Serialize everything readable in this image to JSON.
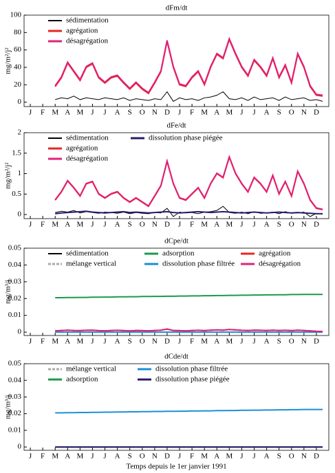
{
  "chart_data": [
    {
      "type": "line",
      "title": "dFm/dt",
      "ylabel": "mg/m²/j²",
      "categories": [
        "J",
        null,
        "F",
        null,
        "M",
        null,
        "A",
        null,
        "M",
        null,
        "J",
        null,
        "J",
        null,
        "A",
        null,
        "S",
        null,
        "O",
        null,
        "N",
        null,
        "D",
        null,
        "J",
        null,
        "F",
        null,
        "M",
        null,
        "A",
        null,
        "M",
        null,
        "J",
        null,
        "J",
        null,
        "A",
        null,
        "S",
        null,
        "O",
        null,
        "N",
        null,
        "D",
        null
      ],
      "ylim": [
        -5,
        100
      ],
      "yticks": [
        0,
        20,
        40,
        60,
        80,
        100
      ],
      "series": [
        {
          "name": "sédimentation",
          "color": "#000000",
          "values": [
            null,
            null,
            null,
            null,
            3,
            5,
            4,
            7,
            3,
            5,
            4,
            3,
            5,
            4,
            3,
            5,
            2,
            4,
            3,
            2,
            4,
            3,
            12,
            1,
            5,
            3,
            4,
            2,
            5,
            6,
            8,
            12,
            4,
            3,
            5,
            2,
            6,
            3,
            4,
            5,
            2,
            6,
            3,
            4,
            5,
            2,
            3,
            1
          ]
        },
        {
          "name": "agrégation",
          "color": "#e8251f",
          "values": [
            null,
            null,
            null,
            null,
            18,
            28,
            45,
            35,
            25,
            40,
            44,
            28,
            22,
            28,
            30,
            22,
            15,
            22,
            15,
            10,
            22,
            35,
            70,
            40,
            20,
            18,
            28,
            35,
            20,
            40,
            55,
            50,
            72,
            55,
            40,
            30,
            48,
            40,
            30,
            50,
            28,
            42,
            22,
            55,
            40,
            18,
            8,
            7
          ]
        },
        {
          "name": "désagrégation",
          "color": "#e0207a",
          "values": [
            null,
            null,
            null,
            null,
            19,
            29,
            46,
            36,
            26,
            41,
            45,
            29,
            23,
            29,
            31,
            23,
            16,
            23,
            16,
            11,
            23,
            36,
            71,
            41,
            21,
            19,
            29,
            36,
            21,
            41,
            56,
            51,
            73,
            56,
            41,
            31,
            49,
            41,
            31,
            51,
            29,
            43,
            23,
            56,
            41,
            19,
            9,
            8
          ]
        }
      ]
    },
    {
      "type": "line",
      "title": "dFe/dt",
      "ylabel": "mg/m²/j²",
      "categories": [
        "J",
        null,
        "F",
        null,
        "M",
        null,
        "A",
        null,
        "M",
        null,
        "J",
        null,
        "J",
        null,
        "A",
        null,
        "S",
        null,
        "O",
        null,
        "N",
        null,
        "D",
        null,
        "J",
        null,
        "F",
        null,
        "M",
        null,
        "A",
        null,
        "M",
        null,
        "J",
        null,
        "J",
        null,
        "A",
        null,
        "S",
        null,
        "O",
        null,
        "N",
        null,
        "D",
        null
      ],
      "ylim": [
        -0.1,
        2
      ],
      "yticks": [
        0,
        0.5,
        1,
        1.5,
        2
      ],
      "series": [
        {
          "name": "sédimentation",
          "color": "#000000",
          "values": [
            null,
            null,
            null,
            null,
            0.05,
            0.08,
            0.06,
            0.1,
            0.04,
            0.07,
            0.05,
            0.03,
            0.06,
            0.05,
            0.03,
            0.06,
            0.02,
            0.05,
            0.03,
            0.02,
            0.05,
            0.04,
            0.15,
            -0.05,
            0.06,
            0.04,
            0.05,
            0.02,
            0.06,
            0.07,
            0.1,
            0.2,
            0.05,
            0.03,
            0.06,
            0.02,
            0.07,
            0.03,
            0.04,
            0.06,
            0.02,
            0.07,
            0.03,
            0.04,
            0.06,
            -0.05,
            0.03,
            0.01
          ]
        },
        {
          "name": "agrégation",
          "color": "#e8251f",
          "values": [
            null,
            null,
            null,
            null,
            0.35,
            0.55,
            0.82,
            0.65,
            0.45,
            0.75,
            0.8,
            0.5,
            0.4,
            0.5,
            0.55,
            0.4,
            0.3,
            0.4,
            0.3,
            0.2,
            0.45,
            0.7,
            1.3,
            0.75,
            0.4,
            0.35,
            0.5,
            0.65,
            0.4,
            0.75,
            1.0,
            0.9,
            1.4,
            1.0,
            0.75,
            0.55,
            0.9,
            0.75,
            0.55,
            0.95,
            0.5,
            0.8,
            0.45,
            1.05,
            0.75,
            0.35,
            0.15,
            0.12
          ]
        },
        {
          "name": "désagrégation",
          "color": "#e0207a",
          "values": [
            null,
            null,
            null,
            null,
            0.36,
            0.56,
            0.83,
            0.66,
            0.46,
            0.76,
            0.81,
            0.51,
            0.41,
            0.51,
            0.56,
            0.41,
            0.31,
            0.41,
            0.31,
            0.21,
            0.46,
            0.71,
            1.31,
            0.76,
            0.41,
            0.36,
            0.51,
            0.66,
            0.41,
            0.76,
            1.01,
            0.91,
            1.41,
            1.01,
            0.76,
            0.56,
            0.91,
            0.76,
            0.56,
            0.96,
            0.51,
            0.81,
            0.46,
            1.06,
            0.76,
            0.36,
            0.16,
            0.13
          ]
        },
        {
          "name": "dissolution phase piégée",
          "color": "#2a1a6e",
          "values": [
            null,
            null,
            null,
            null,
            0.02,
            0.04,
            0.05,
            0.06,
            0.07,
            0.08,
            0.06,
            0.05,
            0.04,
            0.05,
            0.06,
            0.07,
            0.05,
            0.06,
            0.05,
            0.04,
            0.05,
            0.06,
            0.07,
            0.05,
            0.04,
            0.05,
            0.06,
            0.07,
            0.06,
            0.05,
            0.06,
            0.07,
            0.06,
            0.05,
            0.04,
            0.05,
            0.06,
            0.05,
            0.04,
            0.05,
            0.06,
            0.05,
            0.04,
            0.05,
            0.04,
            0.03,
            0.02,
            0.02
          ]
        }
      ]
    },
    {
      "type": "line",
      "title": "dCpe/dt",
      "ylabel": "mg/m³/j",
      "categories": [
        "J",
        null,
        "F",
        null,
        "M",
        null,
        "A",
        null,
        "M",
        null,
        "J",
        null,
        "J",
        null,
        "A",
        null,
        "S",
        null,
        "O",
        null,
        "N",
        null,
        "D",
        null,
        "J",
        null,
        "F",
        null,
        "M",
        null,
        "A",
        null,
        "M",
        null,
        "J",
        null,
        "J",
        null,
        "A",
        null,
        "S",
        null,
        "O",
        null,
        "N",
        null,
        "D",
        null
      ],
      "ylim": [
        -0.002,
        0.05
      ],
      "yticks": [
        0,
        0.01,
        0.02,
        0.03,
        0.04,
        0.05
      ],
      "series": [
        {
          "name": "sédimentation",
          "color": "#000000",
          "values": [
            null,
            null,
            null,
            null,
            0,
            0,
            0,
            0,
            0,
            0,
            0,
            0,
            0,
            0,
            0,
            0,
            0,
            0,
            0,
            0,
            0,
            0,
            0,
            0,
            0,
            0,
            0,
            0,
            0,
            0,
            0,
            0,
            0,
            0,
            0,
            0,
            0,
            0,
            0,
            0,
            0,
            0,
            0,
            0,
            0,
            0,
            0,
            0
          ]
        },
        {
          "name": "mélange vertical",
          "color": "#aaaaaa",
          "dash": true,
          "values": [
            null,
            null,
            null,
            null,
            0,
            0,
            0,
            0,
            0,
            0,
            0,
            0,
            0,
            0,
            0,
            0,
            0,
            0,
            0,
            0,
            0,
            0,
            0,
            0,
            0,
            0,
            0,
            0,
            0,
            0,
            0,
            0,
            0,
            0,
            0,
            0,
            0,
            0,
            0,
            0,
            0,
            0,
            0,
            0,
            0,
            0,
            0,
            0
          ]
        },
        {
          "name": "adsorption",
          "color": "#1a9a4a",
          "values": [
            null,
            null,
            null,
            null,
            0.0205,
            0.0205,
            0.0206,
            0.0206,
            0.0207,
            0.0207,
            0.0208,
            0.0208,
            0.0209,
            0.0209,
            0.021,
            0.021,
            0.0211,
            0.0211,
            0.0212,
            0.0212,
            0.0213,
            0.0213,
            0.0214,
            0.0214,
            0.0215,
            0.0215,
            0.0216,
            0.0216,
            0.0217,
            0.0217,
            0.0218,
            0.0218,
            0.0219,
            0.0219,
            0.022,
            0.022,
            0.0221,
            0.0221,
            0.0222,
            0.0222,
            0.0223,
            0.0223,
            0.0224,
            0.0224,
            0.0225,
            0.0225,
            0.0225,
            0.0225
          ]
        },
        {
          "name": "dissolution phase filtrée",
          "color": "#1b8fd6",
          "values": [
            null,
            null,
            null,
            null,
            0,
            0,
            0,
            0,
            0,
            0,
            0,
            0,
            0,
            0,
            0,
            0,
            0,
            0,
            0,
            0,
            0,
            0,
            0,
            0,
            0,
            0,
            0,
            0,
            0,
            0,
            0,
            0,
            0,
            0,
            0,
            0,
            0,
            0,
            0,
            0,
            0,
            0,
            0,
            0,
            0,
            0,
            0,
            0
          ]
        },
        {
          "name": "agrégation",
          "color": "#e8251f",
          "values": [
            null,
            null,
            null,
            null,
            0.0008,
            0.001,
            0.0012,
            0.001,
            0.0009,
            0.0011,
            0.0012,
            0.0009,
            0.0008,
            0.001,
            0.0011,
            0.0009,
            0.0008,
            0.001,
            0.0009,
            0.0008,
            0.001,
            0.0012,
            0.0018,
            0.001,
            0.0009,
            0.0008,
            0.001,
            0.0011,
            0.0009,
            0.0012,
            0.0013,
            0.0012,
            0.0016,
            0.0013,
            0.0011,
            0.001,
            0.0012,
            0.0011,
            0.001,
            0.0012,
            0.001,
            0.0011,
            0.0009,
            0.0012,
            0.001,
            0.0008,
            0.0005,
            0.0004
          ]
        },
        {
          "name": "désagrégation",
          "color": "#e0207a",
          "values": [
            null,
            null,
            null,
            null,
            0.0008,
            0.001,
            0.0012,
            0.001,
            0.0009,
            0.0011,
            0.0012,
            0.0009,
            0.0008,
            0.001,
            0.0011,
            0.0009,
            0.0008,
            0.001,
            0.0009,
            0.0008,
            0.001,
            0.0012,
            0.0018,
            0.001,
            0.0009,
            0.0008,
            0.001,
            0.0011,
            0.0009,
            0.0012,
            0.0013,
            0.0012,
            0.0016,
            0.0013,
            0.0011,
            0.001,
            0.0012,
            0.0011,
            0.001,
            0.0012,
            0.001,
            0.0011,
            0.0009,
            0.0012,
            0.001,
            0.0008,
            0.0005,
            0.0004
          ]
        }
      ]
    },
    {
      "type": "line",
      "title": "dCde/dt",
      "ylabel": "mg/m³/j",
      "xlabel": "Temps depuis le 1er janvier 1991",
      "categories": [
        "J",
        null,
        "F",
        null,
        "M",
        null,
        "A",
        null,
        "M",
        null,
        "J",
        null,
        "J",
        null,
        "A",
        null,
        "S",
        null,
        "O",
        null,
        "N",
        null,
        "D",
        null,
        "J",
        null,
        "F",
        null,
        "M",
        null,
        "A",
        null,
        "M",
        null,
        "J",
        null,
        "J",
        null,
        "A",
        null,
        "S",
        null,
        "O",
        null,
        "N",
        null,
        "D",
        null
      ],
      "ylim": [
        -0.002,
        0.05
      ],
      "yticks": [
        0,
        0.01,
        0.02,
        0.03,
        0.04,
        0.05
      ],
      "series": [
        {
          "name": "mélange vertical",
          "color": "#aaaaaa",
          "dash": true,
          "values": [
            null,
            null,
            null,
            null,
            0,
            0,
            0,
            0,
            0,
            0,
            0,
            0,
            0,
            0,
            0,
            0,
            0,
            0,
            0,
            0,
            0,
            0,
            0,
            0,
            0,
            0,
            0,
            0,
            0,
            0,
            0,
            0,
            0,
            0,
            0,
            0,
            0,
            0,
            0,
            0,
            0,
            0,
            0,
            0,
            0,
            0,
            0,
            0
          ]
        },
        {
          "name": "adsorption",
          "color": "#1a9a4a",
          "values": [
            null,
            null,
            null,
            null,
            0,
            0,
            0,
            0,
            0,
            0,
            0,
            0,
            0,
            0,
            0,
            0,
            0,
            0,
            0,
            0,
            0,
            0,
            0,
            0,
            0,
            0,
            0,
            0,
            0,
            0,
            0,
            0,
            0,
            0,
            0,
            0,
            0,
            0,
            0,
            0,
            0,
            0,
            0,
            0,
            0,
            0,
            0,
            0
          ]
        },
        {
          "name": "dissolution phase filtrée",
          "color": "#1b8fd6",
          "values": [
            null,
            null,
            null,
            null,
            0.0205,
            0.0205,
            0.0206,
            0.0206,
            0.0207,
            0.0207,
            0.0208,
            0.0208,
            0.0209,
            0.0209,
            0.021,
            0.021,
            0.0211,
            0.0211,
            0.0212,
            0.0212,
            0.0213,
            0.0213,
            0.0214,
            0.0214,
            0.0215,
            0.0215,
            0.0216,
            0.0216,
            0.0217,
            0.0217,
            0.0218,
            0.0218,
            0.0219,
            0.0219,
            0.022,
            0.022,
            0.0221,
            0.0221,
            0.0222,
            0.0222,
            0.0223,
            0.0223,
            0.0224,
            0.0224,
            0.0225,
            0.0225,
            0.0225,
            0.0225
          ]
        },
        {
          "name": "dissolution phase piégée",
          "color": "#2a1a6e",
          "values": [
            null,
            null,
            null,
            null,
            0,
            0,
            0,
            0,
            0,
            0,
            0,
            0,
            0,
            0,
            0,
            0,
            0,
            0,
            0,
            0,
            0,
            0,
            0,
            0,
            0,
            0,
            0,
            0,
            0,
            0,
            0,
            0,
            0,
            0,
            0,
            0,
            0,
            0,
            0,
            0,
            0,
            0,
            0,
            0,
            0,
            0,
            0,
            0
          ]
        }
      ]
    }
  ]
}
